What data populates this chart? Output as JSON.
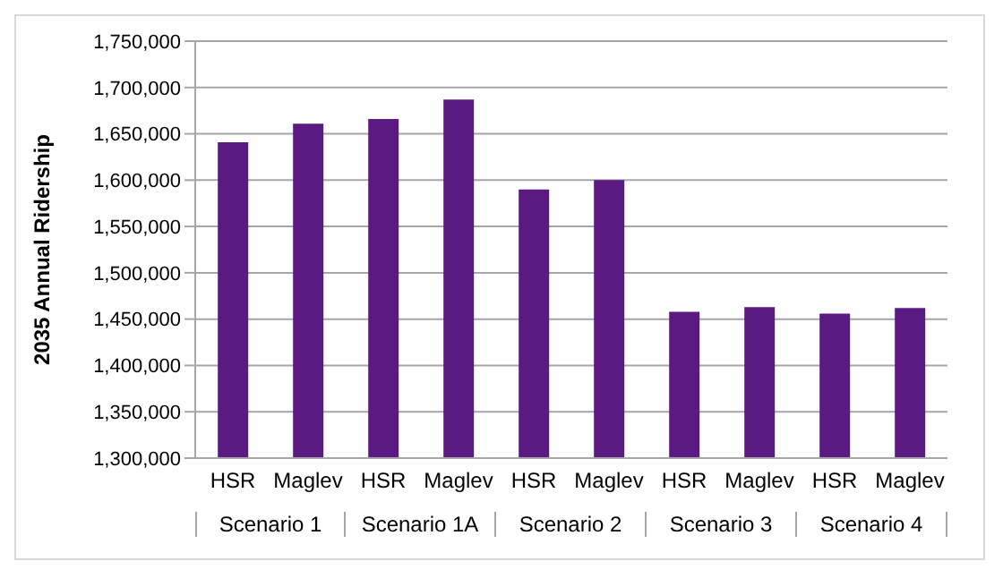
{
  "chart_data": {
    "type": "bar",
    "ylabel": "2035 Annual Ridership",
    "categories": [
      "HSR",
      "Maglev",
      "HSR",
      "Maglev",
      "HSR",
      "Maglev",
      "HSR",
      "Maglev",
      "HSR",
      "Maglev"
    ],
    "values": [
      1641000,
      1661000,
      1666000,
      1687000,
      1590000,
      1600000,
      1458000,
      1463000,
      1456000,
      1462000
    ],
    "color": "#5b1a82",
    "annotations": [
      "Scenario 1",
      "Scenario 1A",
      "Scenario 2",
      "Scenario 3",
      "Scenario 4"
    ],
    "ylim": [
      1300000,
      1750000
    ],
    "yticks": [
      {
        "value": 1300000,
        "label": "1,300,000"
      },
      {
        "value": 1350000,
        "label": "1,350,000"
      },
      {
        "value": 1400000,
        "label": "1,400,000"
      },
      {
        "value": 1450000,
        "label": "1,450,000"
      },
      {
        "value": 1500000,
        "label": "1,500,000"
      },
      {
        "value": 1550000,
        "label": "1,550,000"
      },
      {
        "value": 1600000,
        "label": "1,600,000"
      },
      {
        "value": 1650000,
        "label": "1,650,000"
      },
      {
        "value": 1700000,
        "label": "1,700,000"
      },
      {
        "value": 1750000,
        "label": "1,750,000"
      }
    ],
    "grid": "y"
  }
}
